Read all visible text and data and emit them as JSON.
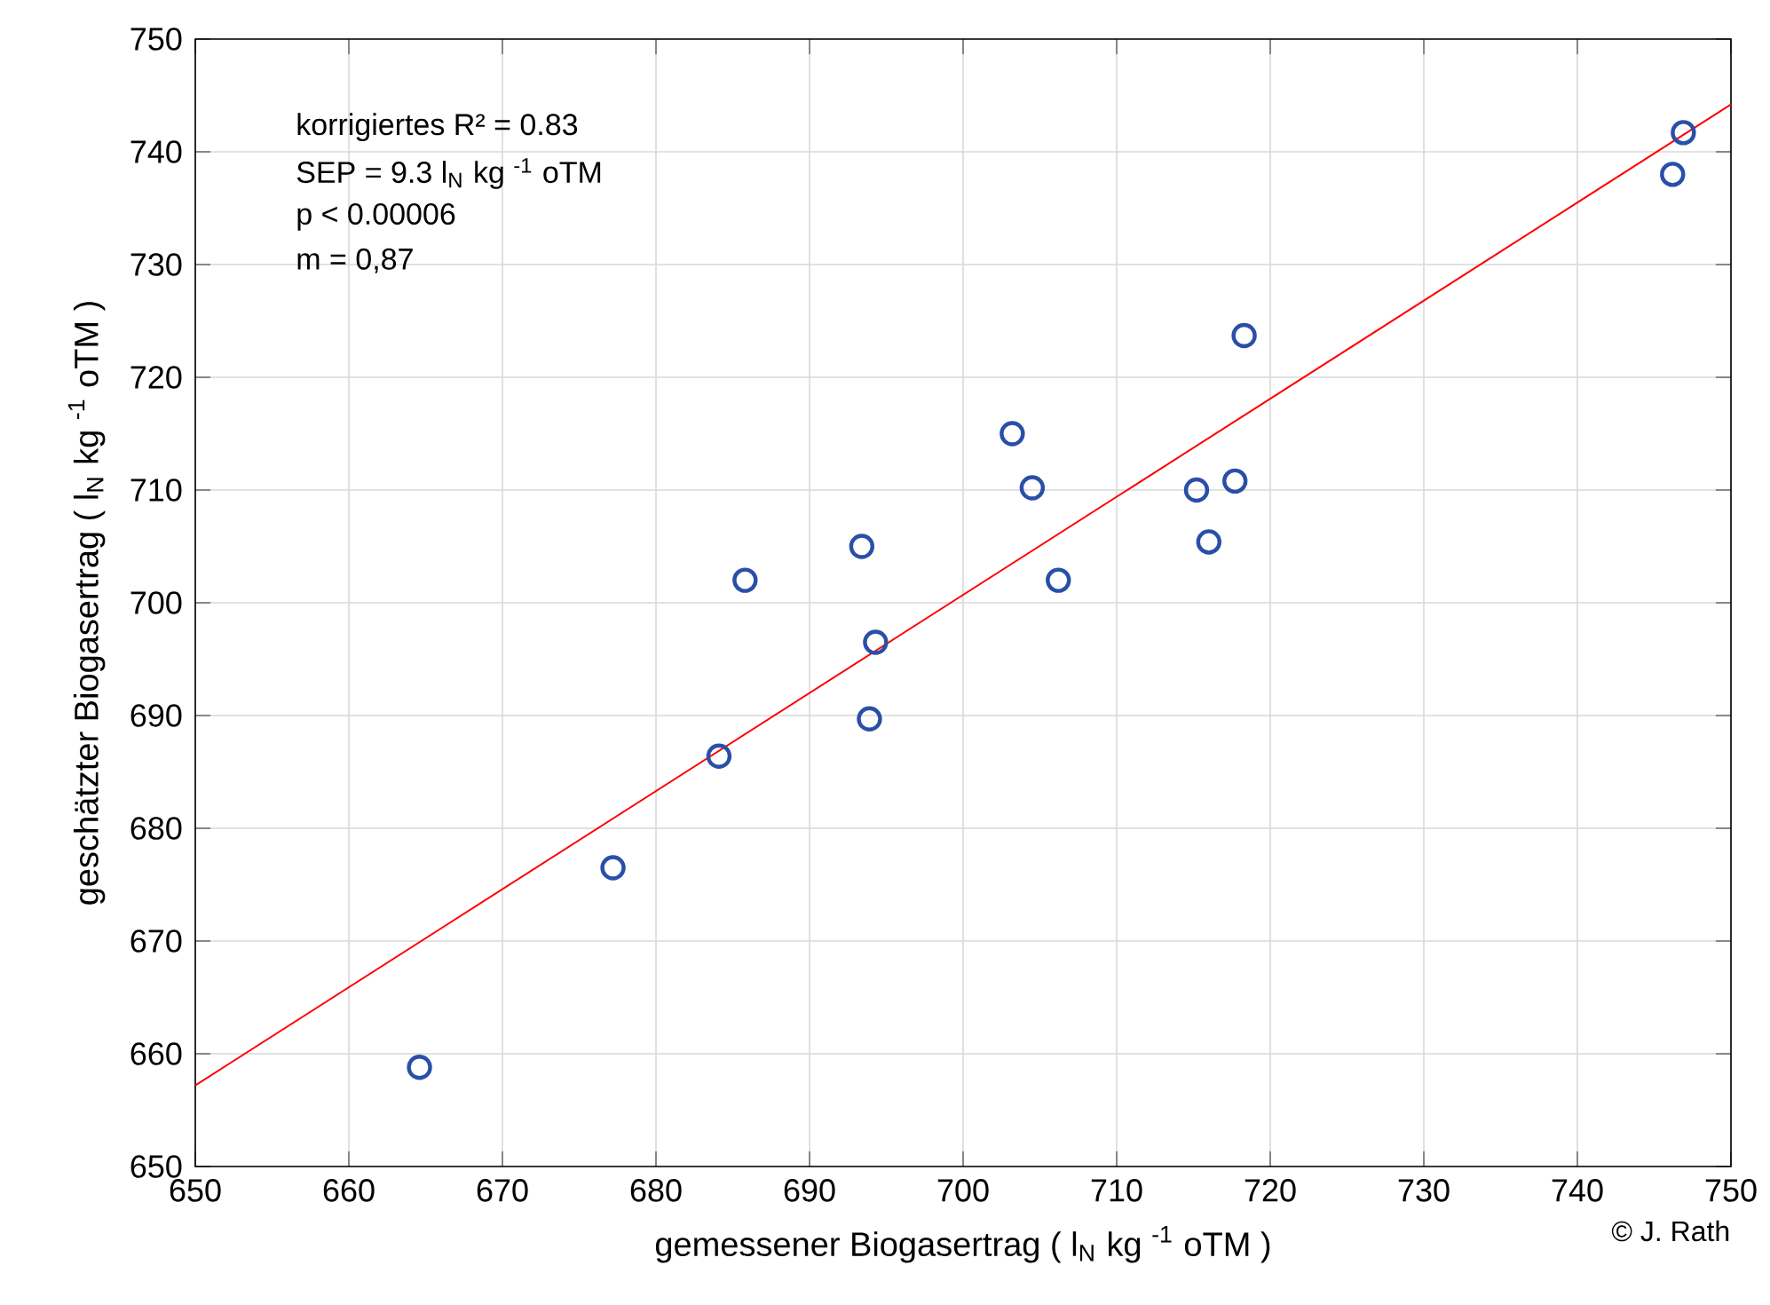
{
  "chart_data": {
    "type": "scatter",
    "xlabel": "gemessener Biogasertrag ( l$_{N}$ kg $^{-1}$ oTM )",
    "ylabel": "geschätzter Biogasertrag ( l$_{N}$ kg $^{-1}$ oTM )",
    "xlim": [
      650,
      750
    ],
    "ylim": [
      650,
      750
    ],
    "xticks": [
      650,
      660,
      670,
      680,
      690,
      700,
      710,
      720,
      730,
      740,
      750
    ],
    "yticks": [
      650,
      660,
      670,
      680,
      690,
      700,
      710,
      720,
      730,
      740,
      750
    ],
    "grid": true,
    "annotations": [
      "korrigiertes R² = 0.83",
      "SEP = 9.3  l$_{N}$ kg $^{-1}$ oTM",
      "p < 0.00006",
      "m = 0,87",
      "© J. Rath"
    ],
    "series": [
      {
        "marker": "circle",
        "color": "#2a4fa8",
        "x": [
          664.6,
          677.2,
          684.1,
          685.8,
          693.4,
          693.9,
          694.3,
          703.2,
          704.5,
          706.2,
          715.2,
          716.0,
          717.7,
          718.3,
          746.2,
          746.9
        ],
        "values": [
          658.8,
          676.5,
          686.4,
          702.0,
          705.0,
          689.7,
          696.5,
          715.0,
          710.2,
          702.0,
          710.0,
          705.4,
          710.8,
          723.7,
          738.0,
          741.7
        ]
      },
      {
        "type": "line",
        "color": "#ff0000",
        "x": [
          650,
          750
        ],
        "values": [
          657.2,
          744.2
        ]
      }
    ]
  }
}
